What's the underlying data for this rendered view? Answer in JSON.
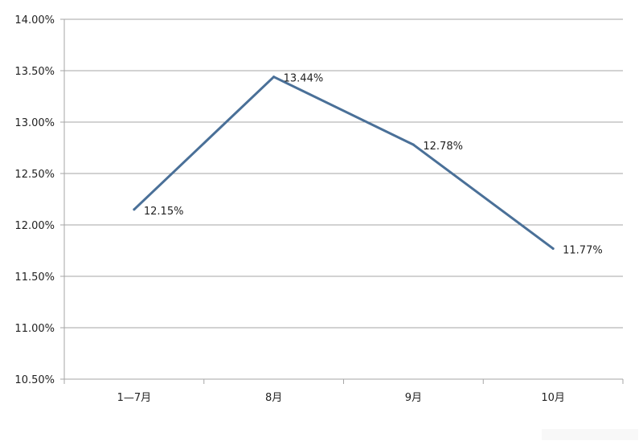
{
  "chart_data": {
    "type": "line",
    "categories": [
      "1—7月",
      "8月",
      "9月",
      "10月"
    ],
    "series": [
      {
        "values": [
          12.15,
          13.44,
          12.78,
          11.77
        ],
        "color": "#4a7098"
      }
    ],
    "data_labels": [
      "12.15%",
      "13.44%",
      "12.78%",
      "11.77%"
    ],
    "y_ticks": [
      10.5,
      11.0,
      11.5,
      12.0,
      12.5,
      13.0,
      13.5,
      14.0
    ],
    "y_tick_labels": [
      "10.50%",
      "11.00%",
      "11.50%",
      "12.00%",
      "12.50%",
      "13.00%",
      "13.50%",
      "14.00%"
    ],
    "ylim": [
      10.5,
      14.0
    ],
    "grid": true,
    "legend": "none",
    "gridline_color": "#a6a6a6"
  }
}
